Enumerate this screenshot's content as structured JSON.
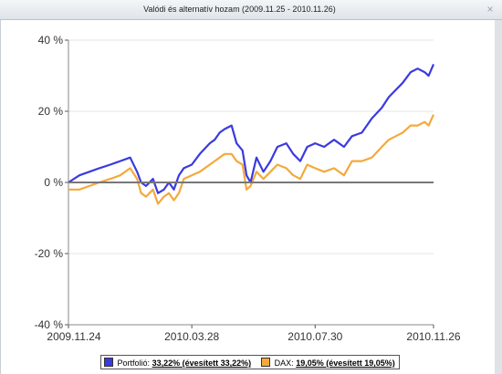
{
  "window": {
    "title": "Valódi és alternatív hozam (2009.11.25 - 2010.11.26)",
    "close_glyph": "×"
  },
  "legend": {
    "portfolio_label": "Portfolió:",
    "portfolio_value": "33,22% (évesített 33,22%)",
    "dax_label": "DAX:",
    "dax_value": "19,05% (évesített 19,05%)"
  },
  "colors": {
    "portfolio": "#3a3ae0",
    "dax": "#f4a93c",
    "zero_line": "#777777",
    "grid": "#e4e4e4"
  },
  "chart_data": {
    "type": "line",
    "ylim": [
      -40,
      40
    ],
    "yticks": [
      "40 %",
      "20 %",
      "0 %",
      "-20 %",
      "-40 %"
    ],
    "ytick_values": [
      40,
      20,
      0,
      -20,
      -40
    ],
    "xticks": [
      "2009.11.24",
      "2010.03.28",
      "2010.07.30",
      "2010.11.26"
    ],
    "xtick_dates": [
      "2009-11-24",
      "2010-03-28",
      "2010-07-30",
      "2010-11-26"
    ],
    "grid": true,
    "legend_position": "bottom",
    "series": [
      {
        "name": "Portfolió",
        "points": [
          [
            "2009-11-24",
            0
          ],
          [
            "2009-12-05",
            2
          ],
          [
            "2009-12-15",
            3
          ],
          [
            "2009-12-25",
            4
          ],
          [
            "2010-01-05",
            5
          ],
          [
            "2010-01-15",
            6
          ],
          [
            "2010-01-25",
            7
          ],
          [
            "2010-02-01",
            3
          ],
          [
            "2010-02-05",
            0
          ],
          [
            "2010-02-10",
            -1
          ],
          [
            "2010-02-17",
            1
          ],
          [
            "2010-02-22",
            -3
          ],
          [
            "2010-02-28",
            -2
          ],
          [
            "2010-03-05",
            0
          ],
          [
            "2010-03-10",
            -2
          ],
          [
            "2010-03-15",
            2
          ],
          [
            "2010-03-20",
            4
          ],
          [
            "2010-03-28",
            5
          ],
          [
            "2010-04-05",
            8
          ],
          [
            "2010-04-15",
            11
          ],
          [
            "2010-04-20",
            12
          ],
          [
            "2010-04-25",
            14
          ],
          [
            "2010-04-30",
            15
          ],
          [
            "2010-05-07",
            16
          ],
          [
            "2010-05-12",
            11
          ],
          [
            "2010-05-18",
            9
          ],
          [
            "2010-05-22",
            2
          ],
          [
            "2010-05-26",
            0
          ],
          [
            "2010-06-01",
            7
          ],
          [
            "2010-06-08",
            3
          ],
          [
            "2010-06-15",
            6
          ],
          [
            "2010-06-22",
            10
          ],
          [
            "2010-07-01",
            11
          ],
          [
            "2010-07-08",
            8
          ],
          [
            "2010-07-15",
            6
          ],
          [
            "2010-07-22",
            10
          ],
          [
            "2010-07-30",
            11
          ],
          [
            "2010-08-08",
            10
          ],
          [
            "2010-08-18",
            12
          ],
          [
            "2010-08-28",
            10
          ],
          [
            "2010-09-05",
            13
          ],
          [
            "2010-09-15",
            14
          ],
          [
            "2010-09-25",
            18
          ],
          [
            "2010-10-05",
            21
          ],
          [
            "2010-10-12",
            24
          ],
          [
            "2010-10-19",
            26
          ],
          [
            "2010-10-26",
            28
          ],
          [
            "2010-11-03",
            31
          ],
          [
            "2010-11-10",
            32
          ],
          [
            "2010-11-17",
            31
          ],
          [
            "2010-11-21",
            30
          ],
          [
            "2010-11-26",
            33.22
          ]
        ]
      },
      {
        "name": "DAX",
        "points": [
          [
            "2009-11-24",
            -2
          ],
          [
            "2009-12-05",
            -2
          ],
          [
            "2009-12-15",
            -1
          ],
          [
            "2009-12-25",
            0
          ],
          [
            "2010-01-05",
            1
          ],
          [
            "2010-01-15",
            2
          ],
          [
            "2010-01-25",
            4
          ],
          [
            "2010-02-01",
            1
          ],
          [
            "2010-02-05",
            -3
          ],
          [
            "2010-02-10",
            -4
          ],
          [
            "2010-02-17",
            -2
          ],
          [
            "2010-02-22",
            -6
          ],
          [
            "2010-02-28",
            -4
          ],
          [
            "2010-03-05",
            -3
          ],
          [
            "2010-03-10",
            -5
          ],
          [
            "2010-03-15",
            -3
          ],
          [
            "2010-03-20",
            1
          ],
          [
            "2010-03-28",
            2
          ],
          [
            "2010-04-05",
            3
          ],
          [
            "2010-04-15",
            5
          ],
          [
            "2010-04-20",
            6
          ],
          [
            "2010-04-25",
            7
          ],
          [
            "2010-04-30",
            8
          ],
          [
            "2010-05-07",
            8
          ],
          [
            "2010-05-12",
            6
          ],
          [
            "2010-05-18",
            5
          ],
          [
            "2010-05-22",
            -2
          ],
          [
            "2010-05-26",
            -1
          ],
          [
            "2010-06-01",
            3
          ],
          [
            "2010-06-08",
            1
          ],
          [
            "2010-06-15",
            3
          ],
          [
            "2010-06-22",
            5
          ],
          [
            "2010-07-01",
            4
          ],
          [
            "2010-07-08",
            2
          ],
          [
            "2010-07-15",
            1
          ],
          [
            "2010-07-22",
            5
          ],
          [
            "2010-07-30",
            4
          ],
          [
            "2010-08-08",
            3
          ],
          [
            "2010-08-18",
            4
          ],
          [
            "2010-08-28",
            2
          ],
          [
            "2010-09-05",
            6
          ],
          [
            "2010-09-15",
            6
          ],
          [
            "2010-09-25",
            7
          ],
          [
            "2010-10-05",
            10
          ],
          [
            "2010-10-12",
            12
          ],
          [
            "2010-10-19",
            13
          ],
          [
            "2010-10-26",
            14
          ],
          [
            "2010-11-03",
            16
          ],
          [
            "2010-11-10",
            16
          ],
          [
            "2010-11-17",
            17
          ],
          [
            "2010-11-21",
            16
          ],
          [
            "2010-11-26",
            19.05
          ]
        ]
      }
    ]
  }
}
